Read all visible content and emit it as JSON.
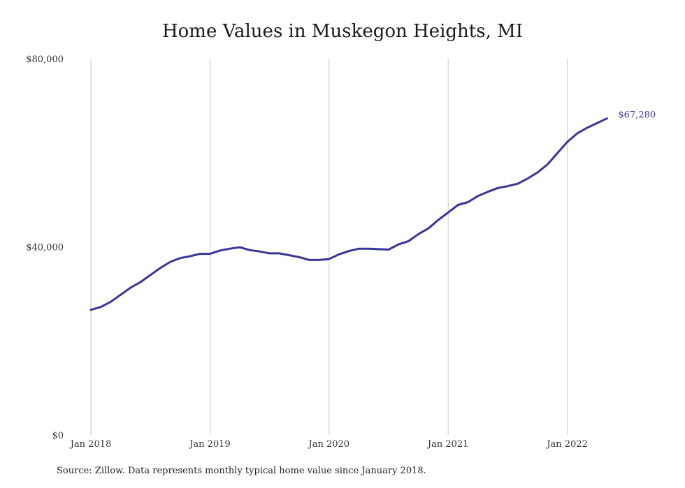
{
  "chart_data": {
    "type": "line",
    "title": "Home Values in Muskegon Heights, MI",
    "xlabel": "",
    "ylabel": "",
    "ylim": [
      0,
      80000
    ],
    "y_ticks": [
      {
        "value": 0,
        "label": "$0"
      },
      {
        "value": 40000,
        "label": "$40,000"
      },
      {
        "value": 80000,
        "label": "$80,000"
      }
    ],
    "x_ticks": [
      {
        "month": 0,
        "label": "Jan 2018"
      },
      {
        "month": 12,
        "label": "Jan 2019"
      },
      {
        "month": 24,
        "label": "Jan 2020"
      },
      {
        "month": 36,
        "label": "Jan 2021"
      },
      {
        "month": 48,
        "label": "Jan 2022"
      }
    ],
    "grid": "vertical at year ticks",
    "line_color": "#3a3499",
    "end_label": "$67,280",
    "series": [
      {
        "values": [
          26600,
          27200,
          28300,
          29800,
          31300,
          32500,
          34000,
          35500,
          36800,
          37600,
          38000,
          38500,
          38500,
          39200,
          39600,
          39900,
          39300,
          39000,
          38600,
          38600,
          38200,
          37800,
          37200,
          37200,
          37400,
          38400,
          39100,
          39600,
          39600,
          39500,
          39400,
          40500,
          41200,
          42700,
          43900,
          45700,
          47300,
          48900,
          49500,
          50800,
          51700,
          52500,
          52900,
          53400,
          54500,
          55800,
          57500,
          59900,
          62300,
          64100,
          65300,
          66300,
          67280
        ]
      }
    ]
  },
  "source_note": "Source: Zillow. Data represents monthly typical home value since January 2018."
}
